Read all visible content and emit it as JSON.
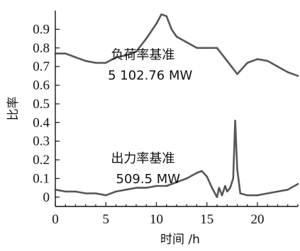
{
  "chart_data": {
    "type": "line",
    "xlabel": "时间 /h",
    "ylabel": "比率",
    "xlim": [
      0,
      24
    ],
    "ylim": [
      -0.05,
      1.0
    ],
    "x_ticks": [
      0,
      5,
      10,
      15,
      20
    ],
    "y_ticks": [
      0,
      0.1,
      0.2,
      0.3,
      0.4,
      0.5,
      0.6,
      0.7,
      0.8,
      0.9
    ],
    "y_tick_labels": [
      "0",
      "0.1",
      "0.2",
      "0.3",
      "0.4",
      "0.5",
      "0.6",
      "0.7",
      "0.8",
      "0.9"
    ],
    "grid": false,
    "annotations": [
      {
        "text": "负荷率基准",
        "x": 5.5,
        "y": 0.74
      },
      {
        "text": "5 102.76 MW",
        "x": 5.2,
        "y": 0.63
      },
      {
        "text": "出力率基准",
        "x": 5.5,
        "y": 0.185
      },
      {
        "text": "509.5 MW",
        "x": 6.0,
        "y": 0.075
      }
    ],
    "series": [
      {
        "x": [
          0,
          1,
          2,
          3,
          4,
          5,
          6,
          7,
          8,
          9,
          10,
          10.5,
          11,
          11.5,
          12,
          13,
          14,
          15,
          16,
          17,
          18,
          19,
          20,
          21,
          22,
          23,
          24
        ],
        "values": [
          0.77,
          0.77,
          0.75,
          0.73,
          0.72,
          0.72,
          0.75,
          0.76,
          0.78,
          0.85,
          0.93,
          0.98,
          0.97,
          0.9,
          0.86,
          0.83,
          0.8,
          0.8,
          0.8,
          0.73,
          0.66,
          0.72,
          0.74,
          0.73,
          0.7,
          0.67,
          0.65
        ]
      },
      {
        "x": [
          0,
          1,
          2,
          3,
          4,
          5,
          6,
          7,
          8,
          9,
          10,
          11,
          12,
          13,
          14,
          14.5,
          15,
          15.5,
          16,
          16.2,
          16.5,
          16.8,
          17,
          17.3,
          17.6,
          17.8,
          18,
          18.3,
          19,
          20,
          21,
          22,
          23,
          24
        ],
        "values": [
          0.04,
          0.03,
          0.03,
          0.02,
          0.02,
          0.01,
          0.03,
          0.04,
          0.05,
          0.05,
          0.06,
          0.06,
          0.08,
          0.1,
          0.13,
          0.14,
          0.11,
          0.05,
          0.0,
          0.05,
          0.01,
          0.06,
          0.03,
          0.05,
          0.1,
          0.41,
          0.15,
          0.02,
          0.01,
          0.01,
          0.02,
          0.03,
          0.04,
          0.07
        ]
      }
    ]
  }
}
